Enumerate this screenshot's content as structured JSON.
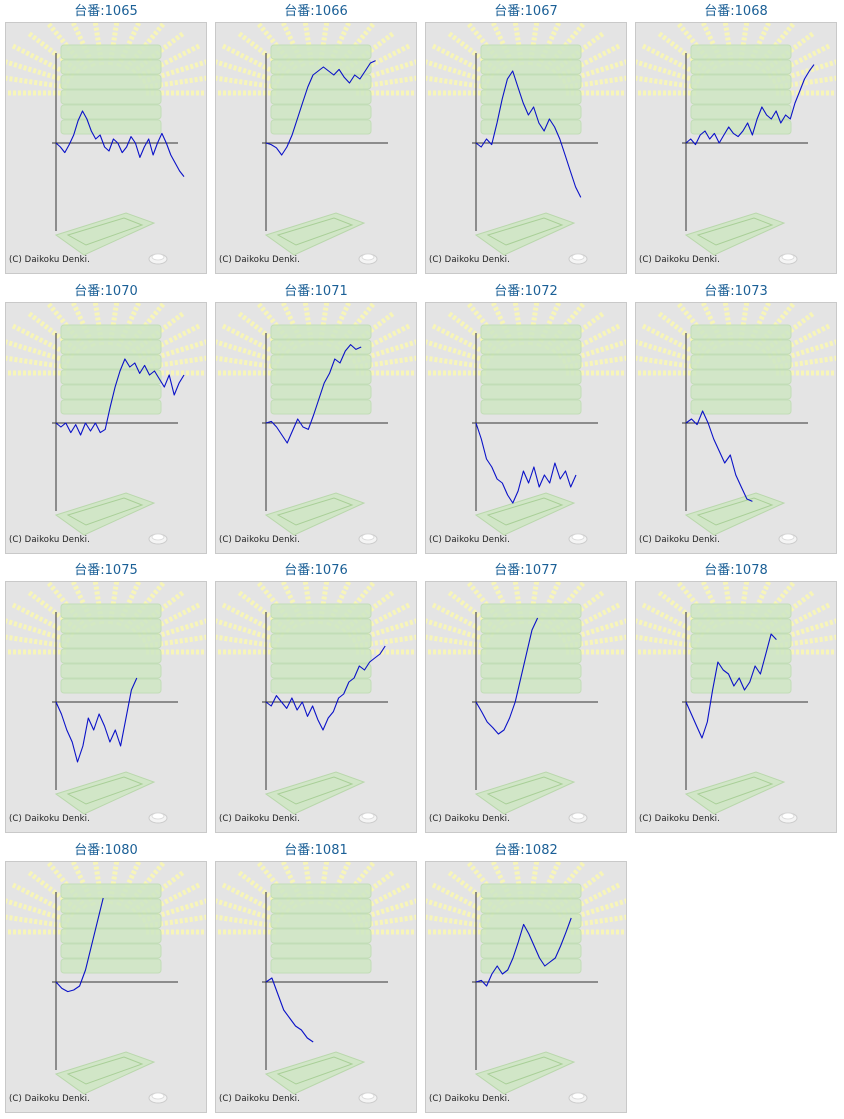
{
  "page": {
    "title_prefix": "台番:",
    "copyright": "(C) Daikoku Denki."
  },
  "colors": {
    "line": "#0b12c8",
    "axis": "#333333",
    "title": "#1a5f96",
    "background": "#e4e4e4",
    "artwork_green": "#cfe7c4",
    "artwork_rays": "#f7f5b8"
  },
  "icons": [
    "slot-machine-artwork-background",
    "medal-icon"
  ],
  "chart_data": [
    {
      "type": "line",
      "title": "台番:1065",
      "y": [
        0,
        -0.05,
        -0.12,
        -0.02,
        0.1,
        0.28,
        0.4,
        0.3,
        0.15,
        0.05,
        0.1,
        -0.05,
        -0.1,
        0.05,
        0.0,
        -0.12,
        -0.05,
        0.08,
        0.0,
        -0.18,
        -0.05,
        0.05,
        -0.15,
        0.0,
        0.12,
        0.0,
        -0.15,
        -0.25,
        -0.35,
        -0.42
      ]
    },
    {
      "type": "line",
      "title": "台番:1066",
      "y": [
        0,
        -0.02,
        -0.06,
        -0.15,
        -0.05,
        0.1,
        0.3,
        0.5,
        0.7,
        0.85,
        0.9,
        0.95,
        0.9,
        0.85,
        0.92,
        0.82,
        0.75,
        0.85,
        0.8,
        0.9,
        1.0,
        1.03
      ]
    },
    {
      "type": "line",
      "title": "台番:1067",
      "y": [
        0,
        -0.05,
        0.05,
        -0.02,
        0.25,
        0.55,
        0.8,
        0.9,
        0.7,
        0.5,
        0.35,
        0.45,
        0.25,
        0.15,
        0.3,
        0.2,
        0.05,
        -0.15,
        -0.35,
        -0.55,
        -0.68
      ]
    },
    {
      "type": "line",
      "title": "台番:1068",
      "y": [
        0,
        0.05,
        -0.02,
        0.1,
        0.15,
        0.05,
        0.12,
        0.0,
        0.1,
        0.2,
        0.12,
        0.08,
        0.15,
        0.25,
        0.1,
        0.3,
        0.45,
        0.35,
        0.3,
        0.4,
        0.25,
        0.35,
        0.3,
        0.5,
        0.65,
        0.8,
        0.9,
        0.98
      ]
    },
    {
      "type": "line",
      "title": "台番:1070",
      "y": [
        0,
        -0.05,
        0.0,
        -0.12,
        -0.02,
        -0.15,
        0.0,
        -0.1,
        0.0,
        -0.12,
        -0.08,
        0.2,
        0.45,
        0.65,
        0.8,
        0.7,
        0.75,
        0.62,
        0.72,
        0.6,
        0.65,
        0.55,
        0.45,
        0.6,
        0.35,
        0.5,
        0.6
      ]
    },
    {
      "type": "line",
      "title": "台番:1071",
      "y": [
        0,
        0.02,
        -0.05,
        -0.15,
        -0.25,
        -0.1,
        0.05,
        -0.05,
        -0.08,
        0.1,
        0.3,
        0.5,
        0.62,
        0.8,
        0.75,
        0.9,
        0.98,
        0.92,
        0.95
      ]
    },
    {
      "type": "line",
      "title": "台番:1072",
      "y": [
        0,
        -0.2,
        -0.45,
        -0.55,
        -0.7,
        -0.75,
        -0.9,
        -1.0,
        -0.85,
        -0.6,
        -0.75,
        -0.55,
        -0.8,
        -0.65,
        -0.75,
        -0.5,
        -0.7,
        -0.6,
        -0.8,
        -0.65
      ]
    },
    {
      "type": "line",
      "title": "台番:1073",
      "y": [
        0,
        0.05,
        -0.02,
        0.15,
        0.0,
        -0.2,
        -0.35,
        -0.5,
        -0.4,
        -0.65,
        -0.8,
        -0.95,
        -0.98
      ]
    },
    {
      "type": "line",
      "title": "台番:1075",
      "y": [
        0,
        -0.15,
        -0.35,
        -0.5,
        -0.75,
        -0.55,
        -0.2,
        -0.35,
        -0.15,
        -0.3,
        -0.5,
        -0.35,
        -0.55,
        -0.2,
        0.15,
        0.3
      ]
    },
    {
      "type": "line",
      "title": "台番:1076",
      "y": [
        0,
        -0.05,
        0.08,
        0.0,
        -0.08,
        0.05,
        -0.1,
        0.0,
        -0.18,
        -0.05,
        -0.22,
        -0.35,
        -0.2,
        -0.12,
        0.05,
        0.1,
        0.25,
        0.3,
        0.45,
        0.4,
        0.5,
        0.55,
        0.6,
        0.7
      ]
    },
    {
      "type": "line",
      "title": "台番:1077",
      "y": [
        0,
        -0.12,
        -0.25,
        -0.32,
        -0.4,
        -0.35,
        -0.2,
        0.0,
        0.3,
        0.6,
        0.9,
        1.05
      ]
    },
    {
      "type": "line",
      "title": "台番:1078",
      "y": [
        0,
        -0.15,
        -0.3,
        -0.45,
        -0.25,
        0.15,
        0.5,
        0.4,
        0.35,
        0.2,
        0.3,
        0.15,
        0.25,
        0.45,
        0.35,
        0.6,
        0.85,
        0.78
      ]
    },
    {
      "type": "line",
      "title": "台番:1080",
      "y": [
        0,
        -0.08,
        -0.12,
        -0.1,
        -0.05,
        0.15,
        0.45,
        0.75,
        1.05
      ]
    },
    {
      "type": "line",
      "title": "台番:1081",
      "y": [
        0,
        0.05,
        -0.15,
        -0.35,
        -0.45,
        -0.55,
        -0.6,
        -0.7,
        -0.75
      ]
    },
    {
      "type": "line",
      "title": "台番:1082",
      "y": [
        0,
        0.02,
        -0.05,
        0.1,
        0.2,
        0.1,
        0.15,
        0.3,
        0.5,
        0.72,
        0.6,
        0.45,
        0.3,
        0.2,
        0.25,
        0.3,
        0.45,
        0.62,
        0.8
      ]
    }
  ]
}
